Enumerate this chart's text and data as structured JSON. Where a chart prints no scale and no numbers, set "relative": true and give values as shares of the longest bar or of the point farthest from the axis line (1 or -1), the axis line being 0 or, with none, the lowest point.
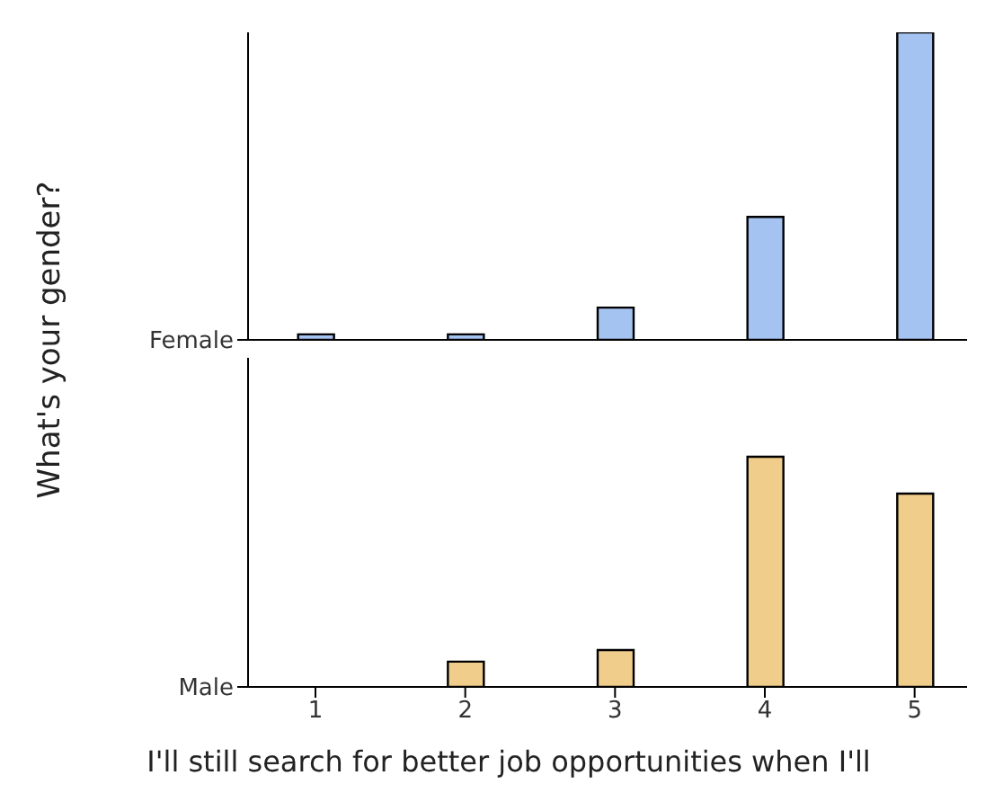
{
  "chart_data": [
    {
      "type": "bar",
      "relative": true,
      "annotations": [
        "What's your gender?"
      ],
      "x": [
        1,
        2,
        3,
        4,
        5
      ],
      "series": [
        {
          "name": "Female",
          "color": "#a4c3f0",
          "values": [
            0.018,
            0.018,
            0.105,
            0.4,
            1
          ]
        }
      ],
      "xlim": [
        0.55,
        5.35
      ],
      "tick_labels": false
    },
    {
      "type": "bar",
      "relative": true,
      "xlabel": "I'll still search for better job opportunities when I'll",
      "x": [
        1,
        2,
        3,
        4,
        5
      ],
      "series": [
        {
          "name": "Male",
          "color": "#f0cd8a",
          "values": [
            0,
            0.11,
            0.16,
            1,
            0.84
          ]
        }
      ],
      "xlim": [
        0.55,
        5.35
      ],
      "xticks": [
        1,
        2,
        3,
        4,
        5
      ],
      "tick_labels": "x"
    }
  ]
}
